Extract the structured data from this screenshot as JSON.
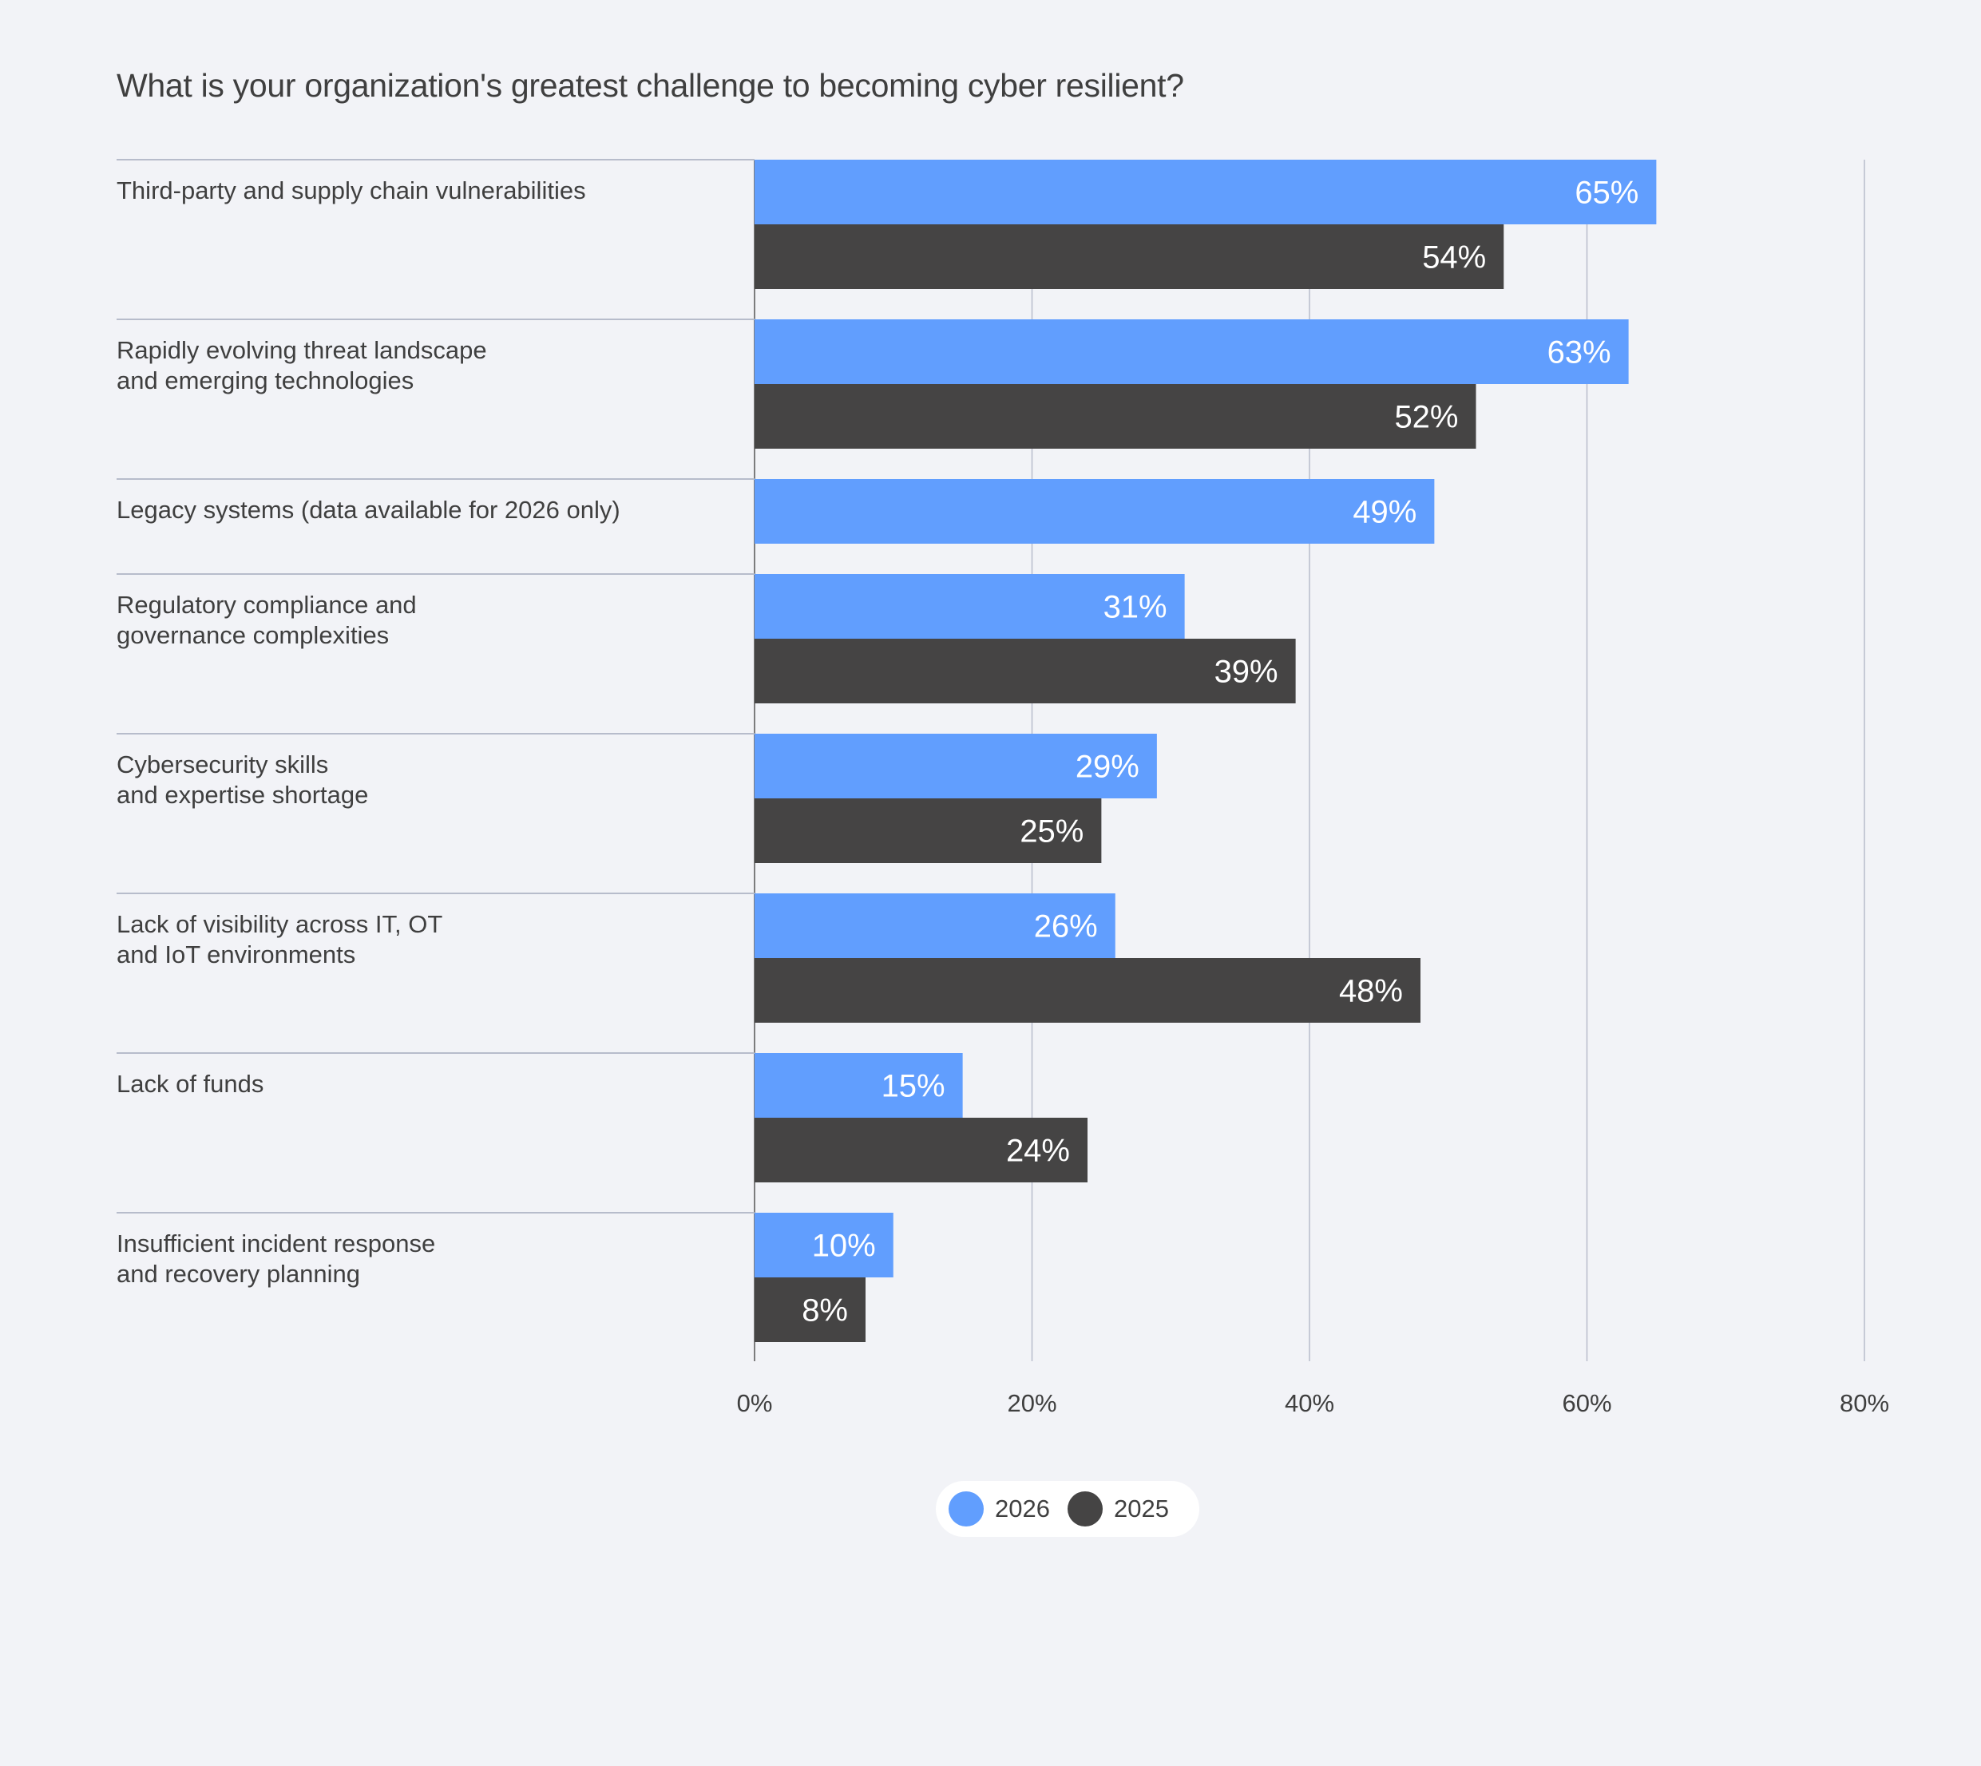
{
  "chart_data": {
    "type": "bar",
    "orientation": "horizontal",
    "title": "What is your organization's greatest challenge to becoming cyber resilient?",
    "categories": [
      [
        "Third-party and supply chain vulnerabilities"
      ],
      [
        "Rapidly evolving threat landscape",
        "and emerging technologies"
      ],
      [
        "Legacy systems (data available for 2026 only)"
      ],
      [
        "Regulatory compliance and",
        "governance complexities"
      ],
      [
        "Cybersecurity skills",
        "and expertise shortage"
      ],
      [
        "Lack of visibility across IT, OT",
        "and IoT environments"
      ],
      [
        "Lack of funds"
      ],
      [
        "Insufficient incident response",
        "and recovery planning"
      ]
    ],
    "series": [
      {
        "name": "2026",
        "color": "#619efe",
        "values": [
          65,
          63,
          49,
          31,
          29,
          26,
          15,
          10
        ]
      },
      {
        "name": "2025",
        "color": "#454444",
        "values": [
          54,
          52,
          null,
          39,
          25,
          48,
          24,
          8
        ]
      }
    ],
    "xlim": [
      0,
      80
    ],
    "xticks": [
      "0%",
      "20%",
      "40%",
      "60%",
      "80%"
    ],
    "value_suffix": "%",
    "grid": true,
    "legend_position": "bottom-center"
  }
}
